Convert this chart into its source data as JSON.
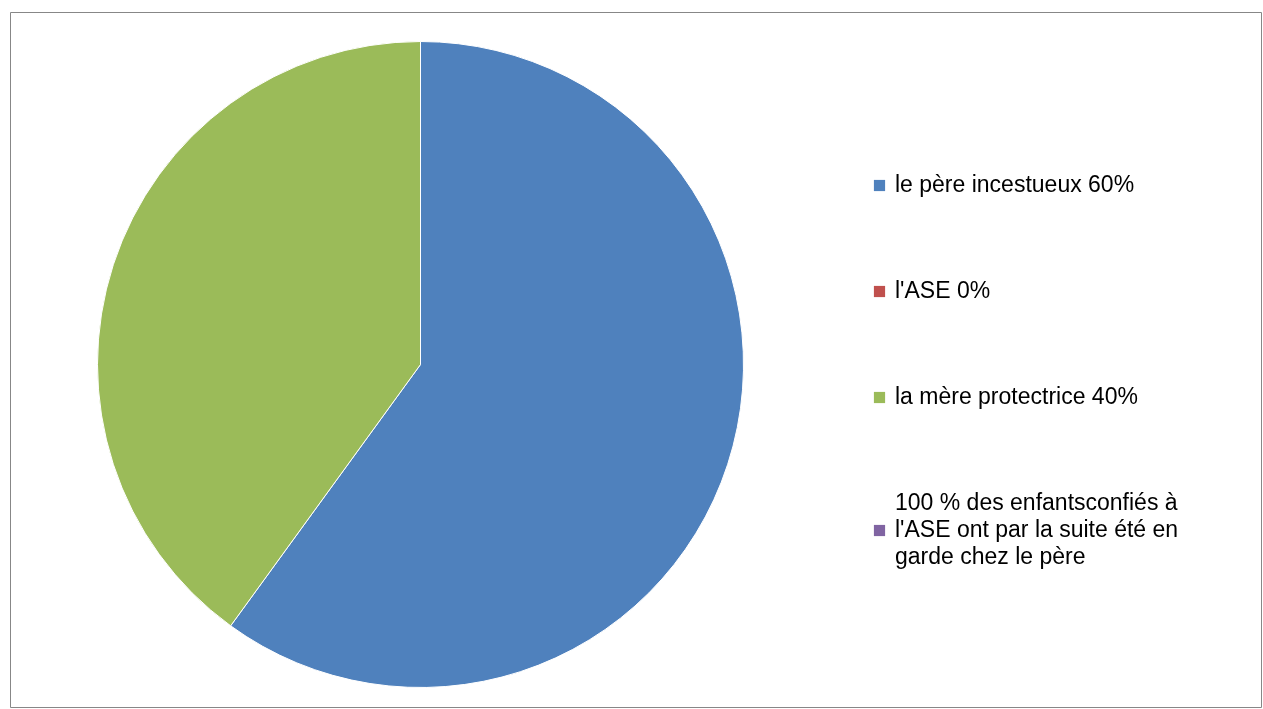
{
  "chart_data": {
    "type": "pie",
    "categories": [
      "le père incestueux 60%",
      "l'ASE 0%",
      "la mère protectrice 40%",
      "100 % des enfantsconfiés à l'ASE ont par la suite été en garde chez le père"
    ],
    "values": [
      60,
      0,
      40,
      0
    ],
    "colors": [
      "#4f81bd",
      "#c0504d",
      "#9bbb59",
      "#8064a2"
    ],
    "legend": "right"
  }
}
